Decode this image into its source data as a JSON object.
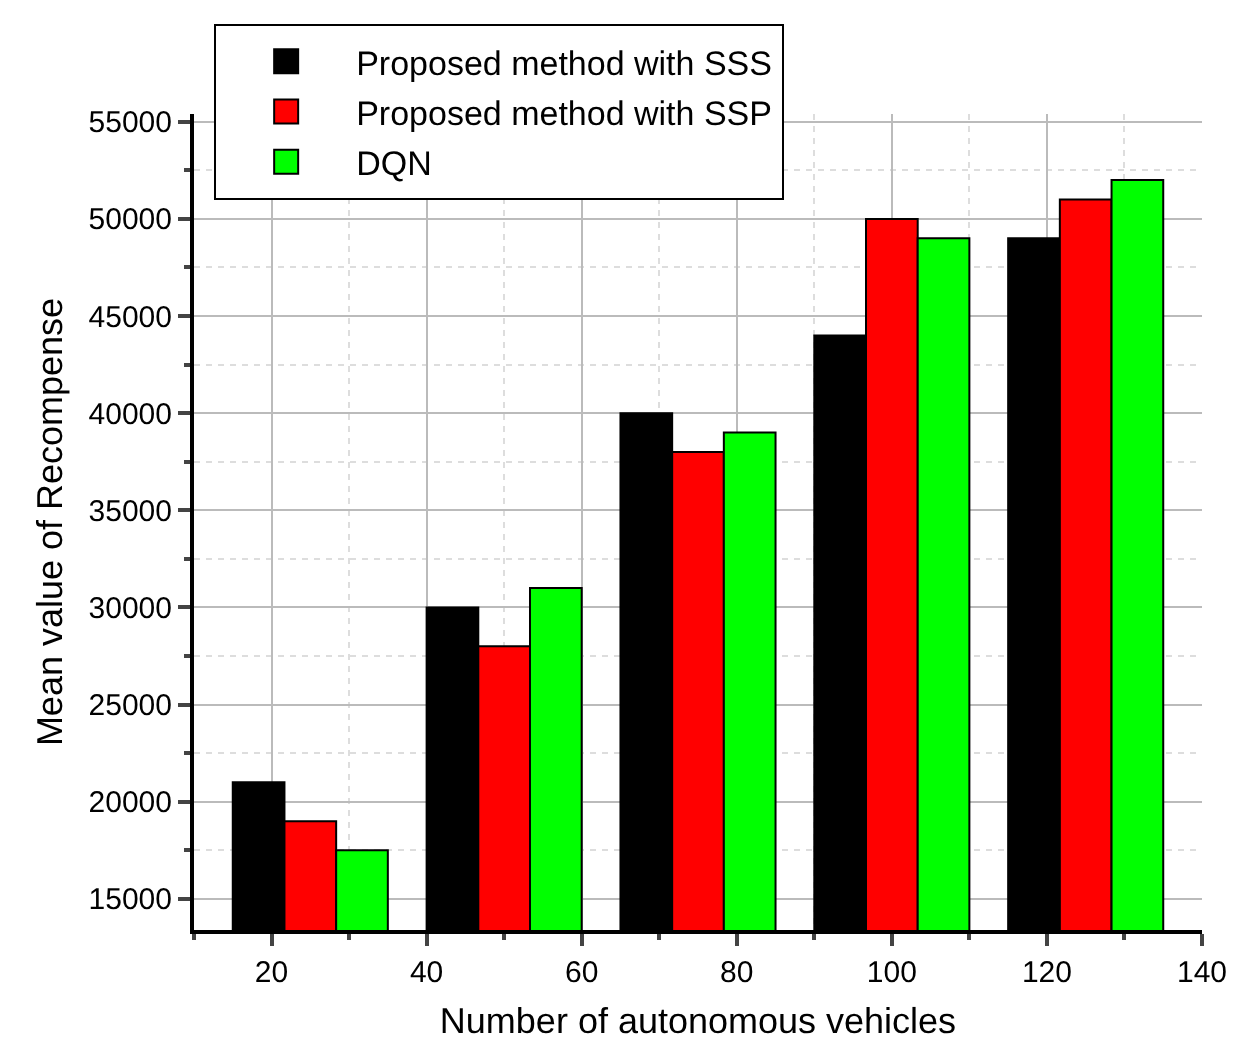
{
  "chart_data": {
    "type": "bar",
    "xlabel": "Number of autonomous vehicles",
    "ylabel": "Mean value of Recompense",
    "xlim": [
      10,
      140
    ],
    "xticks": [
      20,
      40,
      60,
      80,
      100,
      120,
      140
    ],
    "ylim": [
      13400,
      55400
    ],
    "yticks": [
      15000,
      20000,
      25000,
      30000,
      35000,
      40000,
      45000,
      50000,
      55000
    ],
    "grid": true,
    "legend": "top left",
    "x": [
      25,
      50,
      75,
      100,
      125
    ],
    "series": [
      {
        "name": "Proposed method with SSS",
        "color": "#000000",
        "values": [
          21000,
          30000,
          40000,
          44000,
          49000
        ]
      },
      {
        "name": "Proposed method with SSP",
        "color": "#ff0000",
        "values": [
          19000,
          28000,
          38000,
          50000,
          51000
        ]
      },
      {
        "name": "DQN",
        "color": "#00ff00",
        "values": [
          17500,
          31000,
          39000,
          49000,
          52000
        ]
      }
    ]
  }
}
